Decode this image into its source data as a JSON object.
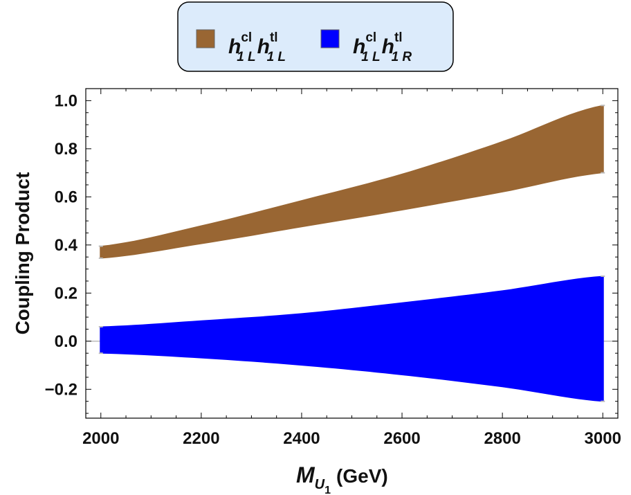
{
  "chart_data": {
    "type": "area",
    "title": "",
    "xlabel": {
      "main": "M",
      "sub": "U",
      "subsub": "1",
      "unit": "(GeV)"
    },
    "ylabel": "Coupling Product",
    "xlim": [
      1970,
      3030
    ],
    "ylim": [
      -0.32,
      1.05
    ],
    "x_ticks": [
      2000,
      2200,
      2400,
      2600,
      2800,
      3000
    ],
    "x_tick_labels": [
      "2000",
      "2200",
      "2400",
      "2600",
      "2800",
      "3000"
    ],
    "y_ticks": [
      -0.2,
      0.0,
      0.2,
      0.4,
      0.6,
      0.8,
      1.0
    ],
    "y_tick_labels": [
      "−0.2",
      "0.0",
      "0.2",
      "0.4",
      "0.6",
      "0.8",
      "1.0"
    ],
    "legend_position": "top-center",
    "series": [
      {
        "color": "#996633",
        "legend": {
          "base1": "h",
          "sup1": "cl",
          "sub1": "1 L",
          "base2": "h",
          "sup2": "tl",
          "sub2": "1 L"
        },
        "x": [
          2000,
          2200,
          2400,
          2600,
          2800,
          3000
        ],
        "lower": [
          0.345,
          0.405,
          0.475,
          0.545,
          0.62,
          0.7
        ],
        "upper": [
          0.395,
          0.48,
          0.585,
          0.695,
          0.83,
          0.98
        ]
      },
      {
        "color": "#0000ff",
        "legend": {
          "base1": "h",
          "sup1": "cl",
          "sub1": "1 L",
          "base2": "h",
          "sup2": "tl",
          "sub2": "1 R"
        },
        "x": [
          2000,
          2200,
          2400,
          2600,
          2800,
          3000
        ],
        "lower": [
          -0.05,
          -0.07,
          -0.1,
          -0.14,
          -0.19,
          -0.25
        ],
        "upper": [
          0.06,
          0.085,
          0.115,
          0.16,
          0.21,
          0.27
        ]
      }
    ]
  }
}
